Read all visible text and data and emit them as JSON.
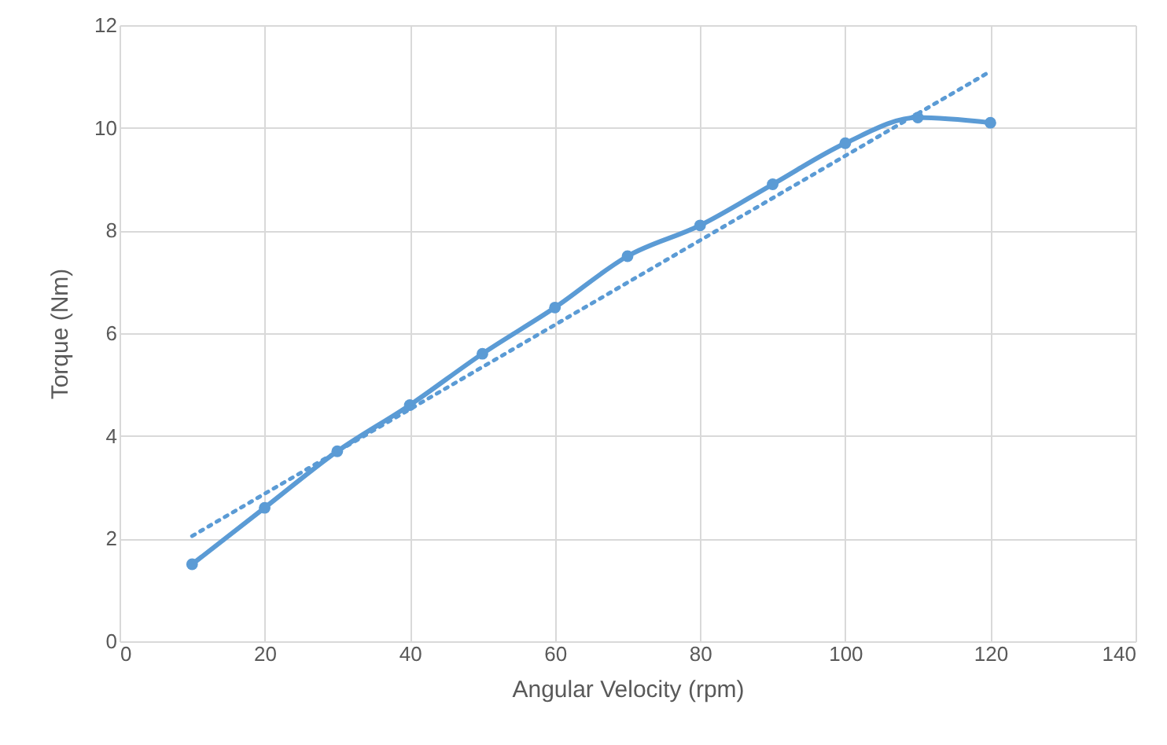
{
  "chart_data": {
    "type": "line",
    "xlabel": "Angular Velocity (rpm)",
    "ylabel": "Torque (Nm)",
    "x": [
      10,
      20,
      30,
      40,
      50,
      60,
      70,
      80,
      90,
      100,
      110,
      120
    ],
    "series": [
      {
        "color": "#5b9bd5",
        "values": [
          1.5,
          2.6,
          3.7,
          4.6,
          5.6,
          6.5,
          7.5,
          8.1,
          8.9,
          9.7,
          10.2,
          10.1
        ]
      },
      {
        "type": "line",
        "color": "#5b9bd5",
        "x": [
          10,
          120
        ],
        "values": [
          2.05,
          11.1
        ],
        "line_style": "dotted",
        "marker": "none"
      }
    ],
    "xlim": [
      0,
      140
    ],
    "xticks": [
      0,
      20,
      40,
      60,
      80,
      100,
      120,
      140
    ],
    "ylim": [
      0,
      12
    ],
    "yticks": [
      0,
      2,
      4,
      6,
      8,
      10,
      12
    ],
    "grid": true,
    "marker": "circle",
    "line_style": "solid"
  }
}
